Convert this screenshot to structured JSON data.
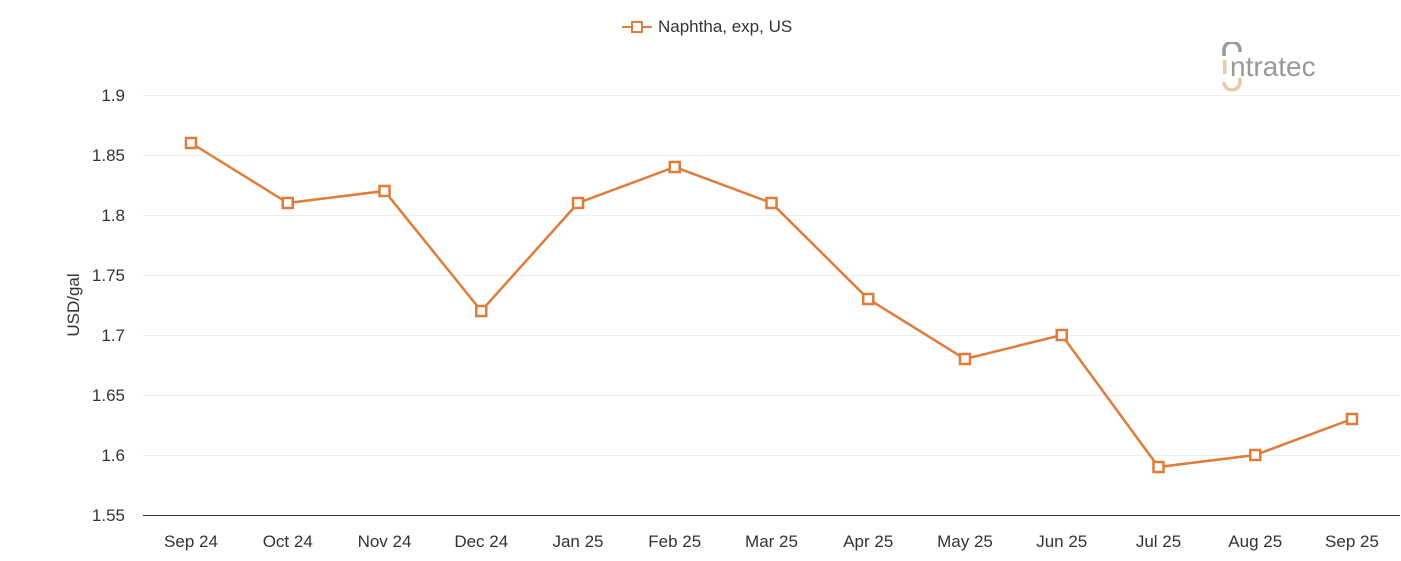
{
  "chart_data": {
    "type": "line",
    "title": "",
    "xlabel": "",
    "ylabel": "USD/gal",
    "categories": [
      "Sep 24",
      "Oct 24",
      "Nov 24",
      "Dec 24",
      "Jan 25",
      "Feb 25",
      "Mar 25",
      "Apr 25",
      "May 25",
      "Jun 25",
      "Jul 25",
      "Aug 25",
      "Sep 25"
    ],
    "series": [
      {
        "name": "Naphtha, exp, US",
        "color": "#e07b39",
        "marker": "square-open",
        "values": [
          1.86,
          1.81,
          1.82,
          1.72,
          1.81,
          1.84,
          1.81,
          1.73,
          1.68,
          1.7,
          1.59,
          1.6,
          1.63
        ]
      }
    ],
    "ylim": [
      1.55,
      1.9
    ],
    "yticks": [
      "1.55",
      "1.6",
      "1.65",
      "1.7",
      "1.75",
      "1.8",
      "1.85",
      "1.9"
    ],
    "grid": true,
    "legend_position": "top-center"
  },
  "logo": {
    "text": "intratec"
  }
}
